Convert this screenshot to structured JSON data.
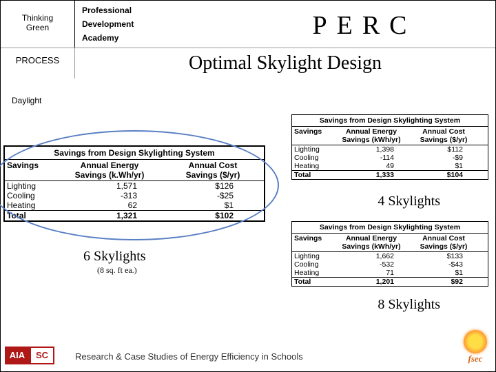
{
  "header": {
    "thinking": "Thinking",
    "green": "Green",
    "professional": "Professional",
    "development": "Development",
    "academy": "Academy",
    "perc": "PERC"
  },
  "process": "PROCESS",
  "title": "Optimal Skylight Design",
  "daylight": "Daylight",
  "tables": {
    "title": "Savings from Design Skylighting System",
    "col1": "Savings",
    "col2a": "Annual Energy",
    "col2b": "Savings (k.Wh/yr)",
    "col2b_small": "Savings (kWh/yr)",
    "col3a": "Annual Cost",
    "col3b": "Savings ($/yr)",
    "rows": {
      "lighting": "Lighting",
      "cooling": "Cooling",
      "heating": "Heating",
      "total": "Total"
    },
    "t6": {
      "lighting_e": "1,571",
      "lighting_c": "$126",
      "cooling_e": "-313",
      "cooling_c": "-$25",
      "heating_e": "62",
      "heating_c": "$1",
      "total_e": "1,321",
      "total_c": "$102"
    },
    "t4": {
      "lighting_e": "1,398",
      "lighting_c": "$112",
      "cooling_e": "-114",
      "cooling_c": "-$9",
      "heating_e": "49",
      "heating_c": "$1",
      "total_e": "1,333",
      "total_c": "$104"
    },
    "t8": {
      "lighting_e": "1,662",
      "lighting_c": "$133",
      "cooling_e": "-532",
      "cooling_c": "-$43",
      "heating_e": "71",
      "heating_c": "$1",
      "total_e": "1,201",
      "total_c": "$92"
    }
  },
  "labels": {
    "l6": "6 Skylights",
    "l6_sub": "(8 sq. ft ea.)",
    "l4": "4 Skylights",
    "l8": "8 Skylights"
  },
  "footer": "Research & Case Studies of Energy Efficiency in Schools",
  "logos": {
    "aia": "AIA",
    "sc": "SC",
    "fsec": "fsec"
  }
}
